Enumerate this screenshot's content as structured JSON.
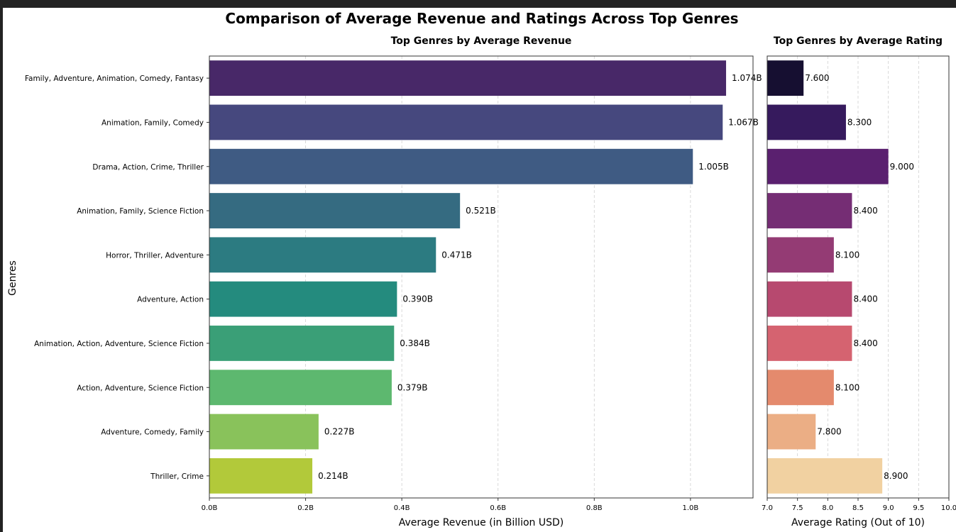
{
  "title": "Comparison of Average Revenue and Ratings Across Top Genres",
  "ylabel": "Genres",
  "chart_data": [
    {
      "type": "bar",
      "orientation": "horizontal",
      "title": "Top Genres by Average Revenue",
      "xlabel": "Average Revenue (in Billion USD)",
      "ylabel": "Genres",
      "xlim": [
        0,
        1.13
      ],
      "xticks": [
        0.0,
        0.2,
        0.4,
        0.6,
        0.8,
        1.0
      ],
      "xtick_labels": [
        "0.0B",
        "0.2B",
        "0.4B",
        "0.6B",
        "0.8B",
        "1.0B"
      ],
      "grid": "x, dashed",
      "palette": "viridis",
      "categories": [
        "Family, Adventure, Animation, Comedy, Fantasy",
        "Animation, Family, Comedy",
        "Drama, Action, Crime, Thriller",
        "Animation, Family, Science Fiction",
        "Horror, Thriller, Adventure",
        "Adventure, Action",
        "Animation, Action, Adventure, Science Fiction",
        "Action, Adventure, Science Fiction",
        "Adventure, Comedy, Family",
        "Thriller, Crime"
      ],
      "values": [
        1.074,
        1.067,
        1.005,
        0.521,
        0.471,
        0.39,
        0.384,
        0.379,
        0.227,
        0.214
      ],
      "value_labels": [
        "1.074B",
        "1.067B",
        "1.005B",
        "0.521B",
        "0.471B",
        "0.390B",
        "0.384B",
        "0.379B",
        "0.227B",
        "0.214B"
      ],
      "colors": [
        "#482868",
        "#46487e",
        "#3f5b83",
        "#356b81",
        "#2c7b81",
        "#248b7e",
        "#3a9f77",
        "#5db86f",
        "#89c25b",
        "#b2c93a"
      ]
    },
    {
      "type": "bar",
      "orientation": "horizontal",
      "title": "Top Genres by Average Rating",
      "xlabel": "Average Rating (Out of 10)",
      "xlim": [
        7.0,
        10.0
      ],
      "xticks": [
        7.0,
        7.5,
        8.0,
        8.5,
        9.0,
        9.5,
        10.0
      ],
      "xtick_labels": [
        "7.0",
        "7.5",
        "8.0",
        "8.5",
        "9.0",
        "9.5",
        "10.0"
      ],
      "grid": "x, dashed",
      "palette": "magma",
      "values": [
        7.6,
        8.3,
        9.0,
        8.4,
        8.1,
        8.4,
        8.4,
        8.1,
        7.8,
        8.9
      ],
      "value_labels": [
        "7.600",
        "8.300",
        "9.000",
        "8.400",
        "8.100",
        "8.400",
        "8.400",
        "8.100",
        "7.800",
        "8.900"
      ],
      "colors": [
        "#160f31",
        "#361a5d",
        "#5a206f",
        "#752d74",
        "#943b74",
        "#b7496f",
        "#d56370",
        "#e48a6d",
        "#ebae85",
        "#f1d1a1"
      ]
    }
  ]
}
